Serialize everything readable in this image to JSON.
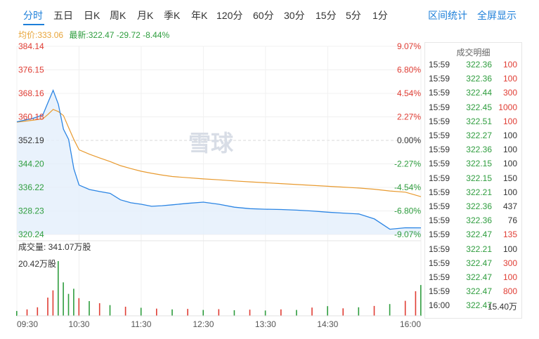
{
  "tabs": [
    "分时",
    "五日",
    "日K",
    "周K",
    "月K",
    "季K",
    "年K",
    "120分",
    "60分",
    "30分",
    "15分",
    "5分",
    "1分"
  ],
  "tools": {
    "interval_stats": "区间统计",
    "fullscreen": "全屏显示"
  },
  "stats": {
    "avg_label": "均价:333.06",
    "last_label": "最新:322.47 -29.72 -8.44%"
  },
  "watermark": "雪球",
  "colors": {
    "up": "#e03d34",
    "down": "#2e9d3e",
    "price_line": "#2b85e4",
    "avg_line": "#e89a2f",
    "accent": "#1d7fd9"
  },
  "chart_data": {
    "type": "line",
    "prev_close": 352.19,
    "price_axis": [
      "384.14",
      "376.15",
      "368.16",
      "360.18",
      "352.19",
      "344.20",
      "336.22",
      "328.23",
      "320.24"
    ],
    "pct_axis": [
      "9.07%",
      "6.80%",
      "4.54%",
      "2.27%",
      "0.00%",
      "-2.27%",
      "-4.54%",
      "-6.80%",
      "-9.07%"
    ],
    "ylim": [
      320.24,
      384.14
    ],
    "time_labels": [
      "09:30",
      "10:30",
      "11:30",
      "12:30",
      "13:30",
      "14:30",
      "16:00"
    ],
    "x": [
      "09:30",
      "09:45",
      "09:55",
      "10:00",
      "10:05",
      "10:10",
      "10:15",
      "10:20",
      "10:25",
      "10:30",
      "10:40",
      "10:50",
      "11:00",
      "11:10",
      "11:20",
      "11:30",
      "11:40",
      "11:50",
      "12:00",
      "12:15",
      "12:30",
      "12:45",
      "13:00",
      "13:15",
      "13:30",
      "13:45",
      "14:00",
      "14:15",
      "14:30",
      "14:45",
      "15:00",
      "15:15",
      "15:30",
      "15:45",
      "16:00"
    ],
    "series": [
      {
        "values": [
          358.5,
          359.6,
          360.8,
          365.0,
          369.2,
          364.5,
          356.0,
          352.5,
          342.5,
          337.0,
          335.5,
          334.8,
          334.2,
          332.0,
          331.0,
          330.5,
          329.8,
          330.0,
          330.3,
          330.8,
          331.2,
          330.5,
          329.5,
          329.0,
          328.8,
          328.7,
          328.5,
          328.2,
          327.8,
          327.5,
          327.2,
          325.5,
          322.0,
          322.5,
          322.47
        ]
      },
      {
        "values": [
          358.4,
          359.0,
          359.5,
          361.0,
          362.7,
          362.0,
          360.6,
          356.5,
          352.5,
          349.0,
          347.5,
          346.2,
          345.0,
          343.6,
          342.6,
          341.7,
          341.0,
          340.4,
          339.9,
          339.5,
          339.1,
          338.8,
          338.4,
          338.1,
          337.8,
          337.5,
          337.2,
          336.9,
          336.6,
          336.3,
          336.0,
          335.6,
          335.0,
          334.6,
          333.06
        ]
      }
    ]
  },
  "volume": {
    "total_label": "成交量: 341.07万股",
    "max_label": "20.42万股",
    "bars": [
      {
        "t": "09:30",
        "v": 1.8,
        "dir": "down"
      },
      {
        "t": "09:40",
        "v": 2.4,
        "dir": "up"
      },
      {
        "t": "09:50",
        "v": 3.2,
        "dir": "up"
      },
      {
        "t": "10:00",
        "v": 6.8,
        "dir": "up"
      },
      {
        "t": "10:05",
        "v": 9.5,
        "dir": "up"
      },
      {
        "t": "10:10",
        "v": 20.42,
        "dir": "down"
      },
      {
        "t": "10:15",
        "v": 12.5,
        "dir": "down"
      },
      {
        "t": "10:20",
        "v": 8.2,
        "dir": "down"
      },
      {
        "t": "10:25",
        "v": 10.1,
        "dir": "down"
      },
      {
        "t": "10:30",
        "v": 6.6,
        "dir": "up"
      },
      {
        "t": "10:40",
        "v": 5.5,
        "dir": "down"
      },
      {
        "t": "10:50",
        "v": 4.7,
        "dir": "up"
      },
      {
        "t": "11:00",
        "v": 4.0,
        "dir": "down"
      },
      {
        "t": "11:15",
        "v": 3.4,
        "dir": "up"
      },
      {
        "t": "11:30",
        "v": 3.0,
        "dir": "down"
      },
      {
        "t": "11:45",
        "v": 2.7,
        "dir": "up"
      },
      {
        "t": "12:00",
        "v": 2.4,
        "dir": "down"
      },
      {
        "t": "12:15",
        "v": 2.6,
        "dir": "up"
      },
      {
        "t": "12:30",
        "v": 2.2,
        "dir": "down"
      },
      {
        "t": "12:45",
        "v": 2.5,
        "dir": "up"
      },
      {
        "t": "13:00",
        "v": 2.1,
        "dir": "down"
      },
      {
        "t": "13:15",
        "v": 2.3,
        "dir": "up"
      },
      {
        "t": "13:30",
        "v": 2.0,
        "dir": "down"
      },
      {
        "t": "13:45",
        "v": 2.4,
        "dir": "up"
      },
      {
        "t": "14:00",
        "v": 2.2,
        "dir": "down"
      },
      {
        "t": "14:15",
        "v": 3.1,
        "dir": "up"
      },
      {
        "t": "14:30",
        "v": 3.6,
        "dir": "down"
      },
      {
        "t": "14:45",
        "v": 2.8,
        "dir": "up"
      },
      {
        "t": "15:00",
        "v": 3.2,
        "dir": "down"
      },
      {
        "t": "15:15",
        "v": 3.7,
        "dir": "up"
      },
      {
        "t": "15:30",
        "v": 4.4,
        "dir": "down"
      },
      {
        "t": "15:45",
        "v": 5.6,
        "dir": "up"
      },
      {
        "t": "15:55",
        "v": 9.2,
        "dir": "up"
      },
      {
        "t": "16:00",
        "v": 11.5,
        "dir": "down"
      }
    ]
  },
  "ticks": {
    "title": "成交明细",
    "rows": [
      {
        "time": "15:59",
        "price": "322.36",
        "volume": "100",
        "dir": "up"
      },
      {
        "time": "15:59",
        "price": "322.36",
        "volume": "100",
        "dir": "up"
      },
      {
        "time": "15:59",
        "price": "322.44",
        "volume": "300",
        "dir": "up"
      },
      {
        "time": "15:59",
        "price": "322.45",
        "volume": "1000",
        "dir": "up"
      },
      {
        "time": "15:59",
        "price": "322.51",
        "volume": "100",
        "dir": "up"
      },
      {
        "time": "15:59",
        "price": "322.27",
        "volume": "100",
        "dir": "neutral"
      },
      {
        "time": "15:59",
        "price": "322.36",
        "volume": "100",
        "dir": "neutral"
      },
      {
        "time": "15:59",
        "price": "322.15",
        "volume": "100",
        "dir": "neutral"
      },
      {
        "time": "15:59",
        "price": "322.15",
        "volume": "150",
        "dir": "neutral"
      },
      {
        "time": "15:59",
        "price": "322.21",
        "volume": "100",
        "dir": "neutral"
      },
      {
        "time": "15:59",
        "price": "322.36",
        "volume": "437",
        "dir": "neutral"
      },
      {
        "time": "15:59",
        "price": "322.36",
        "volume": "76",
        "dir": "neutral"
      },
      {
        "time": "15:59",
        "price": "322.47",
        "volume": "135",
        "dir": "up"
      },
      {
        "time": "15:59",
        "price": "322.21",
        "volume": "100",
        "dir": "neutral"
      },
      {
        "time": "15:59",
        "price": "322.47",
        "volume": "300",
        "dir": "up"
      },
      {
        "time": "15:59",
        "price": "322.47",
        "volume": "100",
        "dir": "up"
      },
      {
        "time": "15:59",
        "price": "322.47",
        "volume": "800",
        "dir": "up"
      },
      {
        "time": "16:00",
        "price": "322.47",
        "volume": "15.40万",
        "dir": "neutral"
      }
    ]
  }
}
